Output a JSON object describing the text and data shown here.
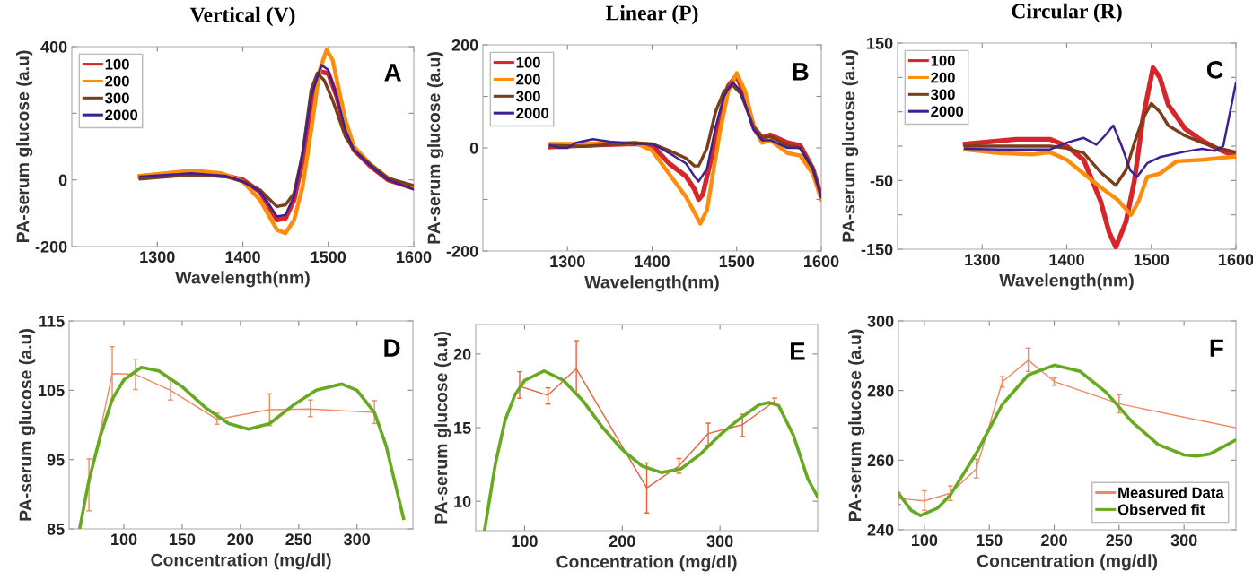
{
  "chart_data": [
    {
      "type": "line",
      "title": "Vertical (V)",
      "xlabel": "Wavelength(nm)",
      "ylabel": "PA-serum glucose (a.u)",
      "xlim": [
        1200,
        1600
      ],
      "ylim": [
        -200,
        400
      ],
      "xticks": [
        1300,
        1400,
        1500,
        1600
      ],
      "yticks": [
        -200,
        0,
        {
          "value": 200,
          "label": null
        },
        400
      ],
      "legend": "top left",
      "annotations": [
        "A"
      ],
      "series": [
        {
          "name": "100",
          "color": "#d7262b",
          "x": [
            1280,
            1340,
            1380,
            1400,
            1420,
            1440,
            1450,
            1460,
            1470,
            1480,
            1490,
            1500,
            1510,
            1520,
            1530,
            1550,
            1570,
            1600
          ],
          "values": [
            10,
            22,
            12,
            0,
            -35,
            -120,
            -115,
            -60,
            60,
            230,
            325,
            320,
            250,
            150,
            90,
            40,
            0,
            -25
          ]
        },
        {
          "name": "200",
          "color": "#ff8c0a",
          "x": [
            1280,
            1340,
            1375,
            1400,
            1420,
            1440,
            1450,
            1460,
            1470,
            1480,
            1490,
            1498,
            1505,
            1510,
            1520,
            1530,
            1550,
            1570,
            1600
          ],
          "values": [
            12,
            28,
            20,
            -5,
            -60,
            -150,
            -160,
            -120,
            -20,
            150,
            330,
            390,
            360,
            300,
            180,
            100,
            45,
            5,
            -25
          ]
        },
        {
          "name": "300",
          "color": "#7a3e1a",
          "x": [
            1280,
            1340,
            1380,
            1400,
            1420,
            1440,
            1450,
            1460,
            1470,
            1480,
            1487,
            1495,
            1505,
            1520,
            1530,
            1550,
            1570,
            1600
          ],
          "values": [
            3,
            15,
            10,
            -5,
            -30,
            -80,
            -75,
            -40,
            80,
            270,
            320,
            300,
            240,
            130,
            90,
            45,
            5,
            -17
          ]
        },
        {
          "name": "2000",
          "color": "#3d1f96",
          "x": [
            1280,
            1340,
            1380,
            1400,
            1420,
            1440,
            1450,
            1460,
            1470,
            1480,
            1492,
            1500,
            1510,
            1520,
            1530,
            1550,
            1570,
            1600
          ],
          "values": [
            10,
            20,
            12,
            -5,
            -35,
            -110,
            -105,
            -50,
            80,
            250,
            345,
            330,
            250,
            150,
            90,
            40,
            0,
            -28
          ]
        }
      ]
    },
    {
      "type": "line",
      "title": "Linear (P)",
      "xlabel": "Wavelength(nm)",
      "ylabel": "PA-serum glucose (a.u)",
      "xlim": [
        1200,
        1600
      ],
      "ylim": [
        -200,
        200
      ],
      "xticks": [
        1300,
        1400,
        1500,
        1600
      ],
      "yticks": [
        -200,
        {
          "value": -100,
          "label": null
        },
        0,
        {
          "value": 100,
          "label": null
        },
        200
      ],
      "legend": "top left",
      "annotations": [
        "B"
      ],
      "series": [
        {
          "name": "100",
          "color": "#d7262b",
          "x": [
            1280,
            1320,
            1380,
            1400,
            1420,
            1440,
            1450,
            1455,
            1460,
            1470,
            1480,
            1490,
            1500,
            1510,
            1520,
            1530,
            1540,
            1560,
            1575,
            1590,
            1600
          ],
          "values": [
            2,
            5,
            8,
            5,
            -30,
            -55,
            -80,
            -100,
            -90,
            -20,
            60,
            120,
            140,
            100,
            40,
            20,
            25,
            10,
            5,
            -40,
            -95
          ]
        },
        {
          "name": "200",
          "color": "#ff8c0a",
          "x": [
            1280,
            1320,
            1380,
            1400,
            1420,
            1440,
            1450,
            1457,
            1465,
            1480,
            1490,
            1500,
            1510,
            1520,
            1530,
            1540,
            1560,
            1575,
            1590,
            1600
          ],
          "values": [
            8,
            8,
            10,
            -5,
            -50,
            -95,
            -125,
            -147,
            -120,
            30,
            110,
            145,
            110,
            40,
            10,
            15,
            -10,
            -15,
            -50,
            -100
          ]
        },
        {
          "name": "300",
          "color": "#7a3e1a",
          "x": [
            1280,
            1320,
            1380,
            1400,
            1420,
            1440,
            1450,
            1455,
            1465,
            1475,
            1485,
            1495,
            1505,
            1520,
            1530,
            1540,
            1560,
            1575,
            1590,
            1600
          ],
          "values": [
            5,
            3,
            10,
            8,
            -5,
            -20,
            -35,
            -35,
            0,
            70,
            110,
            122,
            105,
            40,
            20,
            22,
            5,
            0,
            -40,
            -95
          ]
        },
        {
          "name": "2000",
          "color": "#3d1f96",
          "x": [
            1280,
            1290,
            1300,
            1310,
            1330,
            1350,
            1380,
            1400,
            1420,
            1440,
            1450,
            1455,
            1465,
            1475,
            1485,
            1495,
            1505,
            1520,
            1530,
            1540,
            1560,
            1575,
            1590,
            1600
          ],
          "values": [
            5,
            0,
            0,
            10,
            17,
            12,
            8,
            8,
            -10,
            -30,
            -55,
            -65,
            -40,
            40,
            100,
            128,
            110,
            35,
            15,
            15,
            0,
            0,
            -40,
            -95
          ]
        }
      ]
    },
    {
      "type": "line",
      "title": "Circular (R)",
      "xlabel": "Wavelength(nm)",
      "ylabel": "PA-serum glucose (a.u)",
      "xlim": [
        1200,
        1600
      ],
      "ylim": [
        -150,
        150
      ],
      "xticks": [
        1300,
        1400,
        1500,
        1600
      ],
      "yticks": [
        -150,
        {
          "value": -100,
          "label": null
        },
        -50,
        {
          "value": 0,
          "label": null
        },
        {
          "value": 50,
          "label": null
        },
        {
          "value": 100,
          "label": null
        },
        150
      ],
      "legend": "top left",
      "annotations": [
        "C"
      ],
      "series": [
        {
          "name": "100",
          "color": "#d7262b",
          "x": [
            1280,
            1340,
            1380,
            1400,
            1420,
            1440,
            1450,
            1458,
            1470,
            1480,
            1490,
            1502,
            1510,
            1520,
            1540,
            1560,
            1580,
            1600
          ],
          "values": [
            3,
            10,
            10,
            0,
            -20,
            -80,
            -125,
            -147,
            -110,
            -50,
            40,
            114,
            100,
            60,
            25,
            8,
            -5,
            -15
          ]
        },
        {
          "name": "200",
          "color": "#ff8c0a",
          "x": [
            1280,
            1320,
            1360,
            1380,
            1400,
            1420,
            1440,
            1460,
            1476,
            1485,
            1495,
            1510,
            1530,
            1560,
            1600
          ],
          "values": [
            -5,
            -10,
            -12,
            -9,
            -20,
            -40,
            -60,
            -78,
            -100,
            -80,
            -45,
            -40,
            -22,
            -20,
            -15
          ]
        },
        {
          "name": "300",
          "color": "#7a3e1a",
          "x": [
            1280,
            1320,
            1380,
            1400,
            1420,
            1440,
            1458,
            1470,
            1480,
            1490,
            1500,
            1510,
            1520,
            1540,
            1560,
            1580,
            1600
          ],
          "values": [
            0,
            0,
            0,
            -3,
            -10,
            -38,
            -57,
            -35,
            5,
            40,
            62,
            50,
            30,
            15,
            5,
            -3,
            -9
          ]
        },
        {
          "name": "2000",
          "color": "#3d1f96",
          "x": [
            1280,
            1320,
            1380,
            1400,
            1420,
            1435,
            1445,
            1455,
            1465,
            1475,
            1483,
            1495,
            1510,
            1540,
            1560,
            1575,
            1585,
            1600
          ],
          "values": [
            -4,
            -5,
            -5,
            5,
            12,
            2,
            15,
            30,
            0,
            -35,
            -45,
            -25,
            -16,
            -8,
            -4,
            -7,
            0,
            92
          ]
        }
      ]
    },
    {
      "type": "line",
      "xlabel": "Concentration (mg/dl)",
      "ylabel": "PA-serum glucose (a.u)",
      "xlim": [
        53,
        348
      ],
      "ylim": [
        85,
        115
      ],
      "xticks": [
        100,
        150,
        200,
        250,
        300
      ],
      "yticks": [
        85,
        95,
        105,
        115
      ],
      "annotations": [
        "D"
      ],
      "series": [
        {
          "color": "#ef8a62",
          "x": [
            70,
            90,
            110,
            140,
            180,
            225,
            260,
            315
          ],
          "values": [
            91.3,
            107.4,
            107.3,
            105,
            100.8,
            102.2,
            102.3,
            101.8
          ],
          "errors": [
            [
              87.6,
              95.1
            ],
            [
              103.6,
              111.3
            ],
            [
              105.1,
              109.5
            ],
            [
              103.6,
              106.5
            ],
            [
              100.1,
              101.7
            ],
            [
              99.9,
              104.5
            ],
            [
              101.2,
              103.6
            ],
            [
              100.2,
              103.5
            ]
          ]
        },
        {
          "color": "#66aa22",
          "x": [
            62,
            70,
            80,
            90,
            100,
            115,
            130,
            150,
            170,
            190,
            207,
            225,
            245,
            265,
            287,
            300,
            315,
            325,
            335,
            340
          ],
          "values": [
            85,
            92,
            98.5,
            103.7,
            106.5,
            108.3,
            107.8,
            105.5,
            102.5,
            100.2,
            99.4,
            100.2,
            102.8,
            105,
            105.9,
            105,
            101.8,
            97,
            90,
            86.5
          ]
        }
      ]
    },
    {
      "type": "line",
      "xlabel": "Concentration (mg/dl)",
      "ylabel": "PA-serum glucose (a.u)",
      "xlim": [
        50,
        400
      ],
      "ylim": [
        8,
        22
      ],
      "xticks": [
        100,
        200,
        300
      ],
      "yticks": [
        10,
        15,
        20
      ],
      "annotations": [
        "E"
      ],
      "series": [
        {
          "color": "#e8603c",
          "x": [
            95,
            124,
            153,
            225,
            258,
            288,
            323,
            356
          ],
          "values": [
            17.8,
            17.2,
            19.0,
            10.9,
            12.4,
            14.6,
            15.2,
            16.8
          ],
          "errors": [
            [
              17.0,
              18.8
            ],
            [
              16.6,
              17.7
            ],
            [
              17.3,
              20.9
            ],
            [
              9.2,
              12.6
            ],
            [
              11.9,
              12.9
            ],
            [
              13.8,
              15.3
            ],
            [
              14.4,
              15.9
            ],
            [
              16.6,
              17.0
            ]
          ]
        },
        {
          "color": "#66aa22",
          "x": [
            59,
            70,
            80,
            90,
            100,
            120,
            140,
            160,
            180,
            200,
            220,
            240,
            260,
            280,
            300,
            320,
            340,
            350,
            360,
            375,
            390,
            400
          ],
          "values": [
            8,
            12.5,
            15.5,
            17.2,
            18.2,
            18.85,
            18.2,
            16.8,
            15.0,
            13.5,
            12.4,
            11.95,
            12.2,
            13.2,
            14.5,
            15.6,
            16.55,
            16.7,
            16.5,
            14.5,
            11.5,
            10.3
          ]
        }
      ]
    },
    {
      "type": "line",
      "xlabel": "Concentration (mg/dl)",
      "ylabel": "PA-serum glucose (a.u)",
      "xlim": [
        80,
        340
      ],
      "ylim": [
        240,
        300
      ],
      "xticks": [
        100,
        150,
        200,
        250,
        300
      ],
      "yticks": [
        240,
        260,
        280,
        300
      ],
      "legend": "bottom right",
      "annotations": [
        "F"
      ],
      "series": [
        {
          "name": "Measured Data",
          "color": "#ef8a62",
          "x": [
            80,
            100,
            120,
            140,
            160,
            180,
            200,
            250,
            340
          ],
          "values": [
            249.0,
            248.3,
            250.5,
            257.5,
            282.5,
            288.7,
            282.6,
            276.2,
            269.3
          ],
          "errors": [
            [
              247.3,
              250.7
            ],
            [
              245.6,
              251.2
            ],
            [
              248.4,
              252.6
            ],
            [
              254.9,
              260.3
            ],
            [
              281,
              284
            ],
            [
              285.5,
              292.2
            ],
            [
              281.5,
              283.6
            ],
            [
              273.6,
              278.8
            ],
            null
          ]
        },
        {
          "name": "Observed fit",
          "color": "#66aa22",
          "x": [
            80,
            90,
            97,
            110,
            120,
            140,
            150,
            160,
            180,
            200,
            220,
            240,
            260,
            280,
            300,
            310,
            320,
            340
          ],
          "values": [
            250.5,
            245.5,
            244.1,
            246.2,
            250,
            262,
            269,
            276,
            284.5,
            287.3,
            285.5,
            279.5,
            271,
            264.5,
            261.5,
            261.2,
            261.8,
            265.8
          ]
        }
      ]
    }
  ]
}
